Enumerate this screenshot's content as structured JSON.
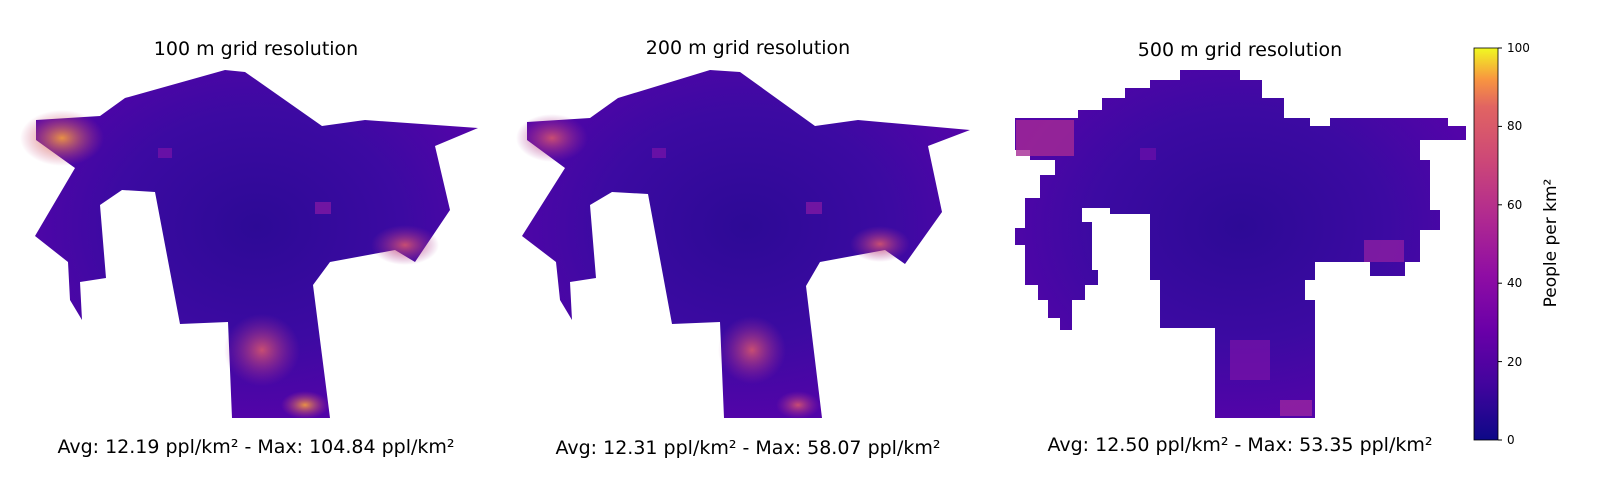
{
  "panels": [
    {
      "title": "100 m grid resolution",
      "stats": "Avg: 12.19 ppl/km² - Max: 104.84 ppl/km²"
    },
    {
      "title": "200 m grid resolution",
      "stats": "Avg: 12.31 ppl/km² - Max: 58.07 ppl/km²"
    },
    {
      "title": "500 m grid resolution",
      "stats": "Avg: 12.50 ppl/km² - Max: 53.35 ppl/km²"
    }
  ],
  "colorbar": {
    "label": "People per km²",
    "ticks": [
      "0",
      "20",
      "40",
      "60",
      "80",
      "100"
    ],
    "min": 0,
    "max": 100,
    "colormap": "plasma"
  },
  "colors": {
    "base": "#3a06a0",
    "mid": "#5a05a8",
    "warm": "#b52f8c",
    "hot": "#e7733a"
  }
}
